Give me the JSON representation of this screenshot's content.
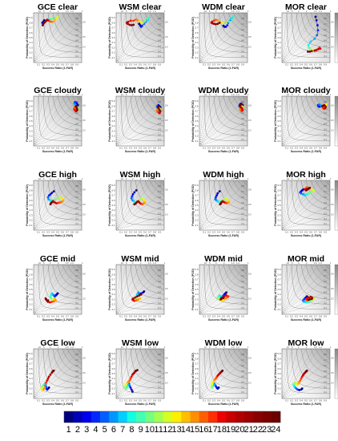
{
  "colors": {
    "hours": [
      "#00007f",
      "#0000b6",
      "#0000ee",
      "#0028ff",
      "#0060ff",
      "#0098ff",
      "#00d0ff",
      "#14ffe2",
      "#44ffb2",
      "#74ff82",
      "#a4ff52",
      "#d4ff22",
      "#ffef00",
      "#ffbf00",
      "#ff8f00",
      "#ff5f00",
      "#ff2f00",
      "#ee0000",
      "#c80000",
      "#b20000",
      "#9d0000",
      "#880000",
      "#7a0000",
      "#6b0000"
    ]
  },
  "common": {
    "xlabel": "Success Ratio (1-FAR)",
    "ylabel": "Probability of Detection (POD)",
    "colorbar_label": "Threat Score (TS)",
    "ticks": [
      "0.1",
      "0.2",
      "0.3",
      "0.4",
      "0.5",
      "0.6",
      "0.7",
      "0.8",
      "0.9"
    ],
    "csi_values": [
      "0.1",
      "0.2",
      "0.3",
      "0.4",
      "0.5",
      "0.6",
      "0.7",
      "0.8",
      "0.9"
    ],
    "bias_values": [
      "0.3",
      "0.5",
      "0.8",
      "1",
      "1.3",
      "1.5",
      "2",
      "3",
      "5",
      "10"
    ]
  },
  "legend": {
    "hours": [
      "1",
      "2",
      "3",
      "4",
      "5",
      "6",
      "7",
      "8",
      "9",
      "10",
      "11",
      "12",
      "13",
      "14",
      "15",
      "16",
      "17",
      "18",
      "19",
      "20",
      "21",
      "22",
      "23",
      "24"
    ]
  },
  "chart_data": [
    {
      "type": "scatter",
      "title": "GCE clear",
      "x": [
        0.22,
        0.2,
        0.18,
        0.2,
        0.22,
        0.24,
        0.27,
        0.31,
        0.35,
        0.4,
        0.46,
        0.5,
        0.48,
        0.44,
        0.4,
        0.36,
        0.32,
        0.3,
        0.28,
        0.26,
        0.24,
        0.22,
        0.2,
        0.19
      ],
      "y": [
        0.85,
        0.82,
        0.8,
        0.78,
        0.8,
        0.82,
        0.84,
        0.86,
        0.87,
        0.88,
        0.9,
        0.92,
        0.88,
        0.85,
        0.82,
        0.82,
        0.84,
        0.85,
        0.86,
        0.84,
        0.82,
        0.8,
        0.78,
        0.75
      ]
    },
    {
      "type": "scatter",
      "title": "WSM clear",
      "x": [
        0.48,
        0.5,
        0.52,
        0.54,
        0.58,
        0.62,
        0.66,
        0.68,
        0.65,
        0.6,
        0.56,
        0.53,
        0.5,
        0.47,
        0.44,
        0.4,
        0.36,
        0.3,
        0.25,
        0.22,
        0.24,
        0.28,
        0.32,
        0.36
      ],
      "y": [
        0.78,
        0.75,
        0.72,
        0.74,
        0.78,
        0.82,
        0.86,
        0.9,
        0.88,
        0.84,
        0.8,
        0.8,
        0.82,
        0.84,
        0.86,
        0.86,
        0.84,
        0.84,
        0.82,
        0.8,
        0.78,
        0.76,
        0.75,
        0.76
      ]
    },
    {
      "type": "scatter",
      "title": "WDM clear",
      "x": [
        0.5,
        0.52,
        0.55,
        0.58,
        0.6,
        0.63,
        0.66,
        0.7,
        0.68,
        0.62,
        0.56,
        0.5,
        0.46,
        0.42,
        0.38,
        0.34,
        0.3,
        0.26,
        0.25,
        0.27,
        0.3,
        0.34,
        0.38,
        0.42
      ],
      "y": [
        0.74,
        0.72,
        0.72,
        0.75,
        0.8,
        0.84,
        0.88,
        0.92,
        0.87,
        0.82,
        0.8,
        0.79,
        0.8,
        0.82,
        0.85,
        0.86,
        0.84,
        0.82,
        0.8,
        0.79,
        0.78,
        0.77,
        0.78,
        0.8
      ]
    },
    {
      "type": "scatter",
      "title": "MOR clear",
      "x": [
        0.7,
        0.72,
        0.74,
        0.75,
        0.73,
        0.68,
        0.6,
        0.55,
        0.56,
        0.58,
        0.6,
        0.62,
        0.64,
        0.68,
        0.72,
        0.76,
        0.78,
        0.8,
        0.76,
        0.72,
        0.68,
        0.62,
        0.58,
        0.54
      ],
      "y": [
        0.92,
        0.85,
        0.75,
        0.65,
        0.55,
        0.48,
        0.42,
        0.35,
        0.3,
        0.28,
        0.26,
        0.25,
        0.24,
        0.25,
        0.26,
        0.28,
        0.3,
        0.28,
        0.27,
        0.25,
        0.24,
        0.23,
        0.22,
        0.22
      ]
    },
    {
      "type": "scatter",
      "title": "GCE cloudy",
      "x": [
        0.92,
        0.9,
        0.88,
        0.86,
        0.85,
        0.86,
        0.88,
        0.9,
        0.91,
        0.92,
        0.93,
        0.9,
        0.88,
        0.87,
        0.86,
        0.85,
        0.84,
        0.86,
        0.88,
        0.9,
        0.91,
        0.9,
        0.89,
        0.88
      ],
      "y": [
        0.82,
        0.85,
        0.87,
        0.88,
        0.86,
        0.84,
        0.8,
        0.78,
        0.76,
        0.75,
        0.74,
        0.73,
        0.72,
        0.74,
        0.76,
        0.78,
        0.74,
        0.72,
        0.7,
        0.71,
        0.73,
        0.75,
        0.78,
        0.8
      ]
    },
    {
      "type": "scatter",
      "title": "WSM cloudy",
      "x": [
        0.92,
        0.9,
        0.88,
        0.86,
        0.85,
        0.86,
        0.88,
        0.9,
        0.92,
        0.93,
        0.91,
        0.89,
        0.87,
        0.86,
        0.85,
        0.86,
        0.88,
        0.9,
        0.91,
        0.92,
        0.9,
        0.88,
        0.87,
        0.89
      ],
      "y": [
        0.78,
        0.8,
        0.82,
        0.8,
        0.78,
        0.76,
        0.74,
        0.72,
        0.7,
        0.72,
        0.75,
        0.77,
        0.76,
        0.74,
        0.72,
        0.7,
        0.68,
        0.66,
        0.68,
        0.7,
        0.73,
        0.76,
        0.78,
        0.8
      ]
    },
    {
      "type": "scatter",
      "title": "WDM cloudy",
      "x": [
        0.9,
        0.88,
        0.86,
        0.84,
        0.83,
        0.84,
        0.86,
        0.88,
        0.9,
        0.91,
        0.9,
        0.88,
        0.86,
        0.85,
        0.84,
        0.86,
        0.88,
        0.9,
        0.89,
        0.87,
        0.85,
        0.84,
        0.86,
        0.88
      ],
      "y": [
        0.82,
        0.84,
        0.85,
        0.83,
        0.8,
        0.78,
        0.76,
        0.74,
        0.73,
        0.75,
        0.78,
        0.8,
        0.78,
        0.76,
        0.74,
        0.72,
        0.7,
        0.72,
        0.75,
        0.77,
        0.79,
        0.81,
        0.83,
        0.84
      ]
    },
    {
      "type": "scatter",
      "title": "MOR cloudy",
      "x": [
        0.8,
        0.78,
        0.76,
        0.75,
        0.77,
        0.8,
        0.83,
        0.86,
        0.88,
        0.9,
        0.92,
        0.93,
        0.91,
        0.89,
        0.87,
        0.85,
        0.86,
        0.88,
        0.9,
        0.91,
        0.9,
        0.88,
        0.86,
        0.84
      ],
      "y": [
        0.8,
        0.79,
        0.8,
        0.82,
        0.83,
        0.82,
        0.8,
        0.79,
        0.78,
        0.8,
        0.82,
        0.84,
        0.82,
        0.8,
        0.78,
        0.77,
        0.76,
        0.75,
        0.76,
        0.78,
        0.8,
        0.82,
        0.81,
        0.8
      ]
    },
    {
      "type": "scatter",
      "title": "GCE high",
      "x": [
        0.42,
        0.38,
        0.35,
        0.32,
        0.3,
        0.31,
        0.34,
        0.36,
        0.4,
        0.45,
        0.5,
        0.55,
        0.6,
        0.62,
        0.6,
        0.56,
        0.52,
        0.48,
        0.45,
        0.42,
        0.4,
        0.38,
        0.36,
        0.35
      ],
      "y": [
        0.78,
        0.75,
        0.72,
        0.7,
        0.66,
        0.62,
        0.6,
        0.58,
        0.6,
        0.62,
        0.64,
        0.66,
        0.64,
        0.6,
        0.58,
        0.56,
        0.55,
        0.54,
        0.55,
        0.57,
        0.58,
        0.56,
        0.54,
        0.52
      ]
    },
    {
      "type": "scatter",
      "title": "WSM high",
      "x": [
        0.42,
        0.38,
        0.35,
        0.33,
        0.32,
        0.34,
        0.37,
        0.4,
        0.44,
        0.48,
        0.52,
        0.56,
        0.58,
        0.6,
        0.58,
        0.55,
        0.52,
        0.5,
        0.48,
        0.46,
        0.44,
        0.42,
        0.4,
        0.38
      ],
      "y": [
        0.8,
        0.76,
        0.72,
        0.68,
        0.64,
        0.6,
        0.58,
        0.56,
        0.58,
        0.6,
        0.62,
        0.64,
        0.6,
        0.56,
        0.54,
        0.52,
        0.53,
        0.54,
        0.56,
        0.58,
        0.57,
        0.55,
        0.53,
        0.52
      ]
    },
    {
      "type": "scatter",
      "title": "WDM high",
      "x": [
        0.42,
        0.38,
        0.36,
        0.34,
        0.33,
        0.35,
        0.38,
        0.41,
        0.44,
        0.48,
        0.52,
        0.56,
        0.6,
        0.62,
        0.6,
        0.57,
        0.54,
        0.52,
        0.5,
        0.48,
        0.46,
        0.45,
        0.44,
        0.43
      ],
      "y": [
        0.78,
        0.74,
        0.7,
        0.66,
        0.62,
        0.6,
        0.58,
        0.57,
        0.58,
        0.6,
        0.62,
        0.63,
        0.6,
        0.57,
        0.55,
        0.54,
        0.55,
        0.56,
        0.57,
        0.58,
        0.56,
        0.54,
        0.53,
        0.52
      ]
    },
    {
      "type": "scatter",
      "title": "MOR high",
      "x": [
        0.45,
        0.42,
        0.4,
        0.38,
        0.4,
        0.44,
        0.48,
        0.52,
        0.56,
        0.6,
        0.64,
        0.66,
        0.62,
        0.58,
        0.55,
        0.52,
        0.5,
        0.48,
        0.5,
        0.53,
        0.56,
        0.58,
        0.55,
        0.52
      ],
      "y": [
        0.82,
        0.8,
        0.78,
        0.76,
        0.74,
        0.72,
        0.7,
        0.72,
        0.74,
        0.76,
        0.78,
        0.8,
        0.82,
        0.84,
        0.85,
        0.86,
        0.84,
        0.82,
        0.8,
        0.82,
        0.84,
        0.85,
        0.83,
        0.81
      ]
    },
    {
      "type": "scatter",
      "title": "GCE mid",
      "x": [
        0.5,
        0.48,
        0.46,
        0.44,
        0.42,
        0.4,
        0.38,
        0.36,
        0.35,
        0.36,
        0.38,
        0.4,
        0.42,
        0.44,
        0.46,
        0.42,
        0.38,
        0.34,
        0.3,
        0.28,
        0.26,
        0.25,
        0.26,
        0.3
      ],
      "y": [
        0.42,
        0.4,
        0.38,
        0.36,
        0.38,
        0.4,
        0.42,
        0.38,
        0.35,
        0.32,
        0.3,
        0.29,
        0.3,
        0.32,
        0.28,
        0.26,
        0.25,
        0.24,
        0.25,
        0.27,
        0.3,
        0.32,
        0.3,
        0.28
      ]
    },
    {
      "type": "scatter",
      "title": "WSM mid",
      "x": [
        0.58,
        0.56,
        0.52,
        0.5,
        0.48,
        0.46,
        0.44,
        0.42,
        0.4,
        0.42,
        0.44,
        0.46,
        0.48,
        0.5,
        0.46,
        0.42,
        0.38,
        0.36,
        0.34,
        0.36,
        0.4,
        0.44,
        0.48,
        0.52
      ],
      "y": [
        0.46,
        0.44,
        0.42,
        0.4,
        0.42,
        0.44,
        0.4,
        0.36,
        0.33,
        0.31,
        0.3,
        0.29,
        0.3,
        0.32,
        0.3,
        0.28,
        0.27,
        0.28,
        0.3,
        0.32,
        0.34,
        0.36,
        0.38,
        0.4
      ]
    },
    {
      "type": "scatter",
      "title": "WDM mid",
      "x": [
        0.56,
        0.54,
        0.52,
        0.5,
        0.48,
        0.46,
        0.44,
        0.42,
        0.4,
        0.38,
        0.4,
        0.44,
        0.48,
        0.52,
        0.55,
        0.58,
        0.6,
        0.56,
        0.52,
        0.48,
        0.45,
        0.44,
        0.46,
        0.5
      ],
      "y": [
        0.44,
        0.42,
        0.4,
        0.38,
        0.36,
        0.35,
        0.36,
        0.38,
        0.36,
        0.33,
        0.3,
        0.29,
        0.28,
        0.3,
        0.32,
        0.34,
        0.36,
        0.38,
        0.36,
        0.34,
        0.32,
        0.3,
        0.31,
        0.33
      ]
    },
    {
      "type": "scatter",
      "title": "MOR mid",
      "x": [
        0.52,
        0.5,
        0.48,
        0.46,
        0.44,
        0.45,
        0.48,
        0.52,
        0.56,
        0.6,
        0.64,
        0.66,
        0.64,
        0.6,
        0.56,
        0.52,
        0.5,
        0.52,
        0.56,
        0.6,
        0.63,
        0.62,
        0.58,
        0.55
      ],
      "y": [
        0.36,
        0.34,
        0.32,
        0.3,
        0.28,
        0.26,
        0.25,
        0.24,
        0.25,
        0.27,
        0.29,
        0.31,
        0.33,
        0.32,
        0.3,
        0.28,
        0.3,
        0.32,
        0.34,
        0.35,
        0.33,
        0.31,
        0.3,
        0.29
      ]
    },
    {
      "type": "scatter",
      "title": "GCE low",
      "x": [
        0.32,
        0.3,
        0.28,
        0.27,
        0.26,
        0.25,
        0.24,
        0.22,
        0.2,
        0.18,
        0.17,
        0.16,
        0.18,
        0.2,
        0.22,
        0.24,
        0.26,
        0.28,
        0.3,
        0.32,
        0.35,
        0.38,
        0.4,
        0.42
      ],
      "y": [
        0.22,
        0.2,
        0.18,
        0.2,
        0.24,
        0.28,
        0.3,
        0.28,
        0.26,
        0.24,
        0.22,
        0.2,
        0.18,
        0.17,
        0.2,
        0.26,
        0.32,
        0.36,
        0.4,
        0.44,
        0.48,
        0.52,
        0.55,
        0.56
      ]
    },
    {
      "type": "scatter",
      "title": "WSM low",
      "x": [
        0.34,
        0.32,
        0.3,
        0.28,
        0.27,
        0.26,
        0.25,
        0.24,
        0.22,
        0.2,
        0.19,
        0.2,
        0.22,
        0.24,
        0.26,
        0.28,
        0.3,
        0.32,
        0.34,
        0.36,
        0.38,
        0.4,
        0.42,
        0.44
      ],
      "y": [
        0.14,
        0.18,
        0.22,
        0.26,
        0.3,
        0.28,
        0.26,
        0.24,
        0.22,
        0.2,
        0.24,
        0.28,
        0.3,
        0.32,
        0.34,
        0.36,
        0.4,
        0.44,
        0.48,
        0.5,
        0.52,
        0.55,
        0.56,
        0.57
      ]
    },
    {
      "type": "scatter",
      "title": "WDM low",
      "x": [
        0.4,
        0.38,
        0.36,
        0.34,
        0.32,
        0.31,
        0.3,
        0.28,
        0.27,
        0.26,
        0.25,
        0.26,
        0.28,
        0.3,
        0.32,
        0.34,
        0.36,
        0.38,
        0.4,
        0.42,
        0.44,
        0.46,
        0.47,
        0.48
      ],
      "y": [
        0.22,
        0.2,
        0.22,
        0.25,
        0.28,
        0.3,
        0.27,
        0.25,
        0.23,
        0.22,
        0.24,
        0.28,
        0.32,
        0.35,
        0.38,
        0.4,
        0.43,
        0.46,
        0.48,
        0.5,
        0.52,
        0.54,
        0.55,
        0.56
      ]
    },
    {
      "type": "scatter",
      "title": "MOR low",
      "x": [
        0.42,
        0.4,
        0.36,
        0.33,
        0.3,
        0.28,
        0.26,
        0.25,
        0.24,
        0.26,
        0.28,
        0.3,
        0.32,
        0.34,
        0.36,
        0.38,
        0.4,
        0.42,
        0.44,
        0.46,
        0.48,
        0.5,
        0.51,
        0.52
      ],
      "y": [
        0.2,
        0.18,
        0.17,
        0.18,
        0.2,
        0.22,
        0.24,
        0.26,
        0.28,
        0.3,
        0.32,
        0.3,
        0.28,
        0.3,
        0.33,
        0.36,
        0.4,
        0.44,
        0.47,
        0.5,
        0.52,
        0.54,
        0.55,
        0.56
      ]
    }
  ]
}
